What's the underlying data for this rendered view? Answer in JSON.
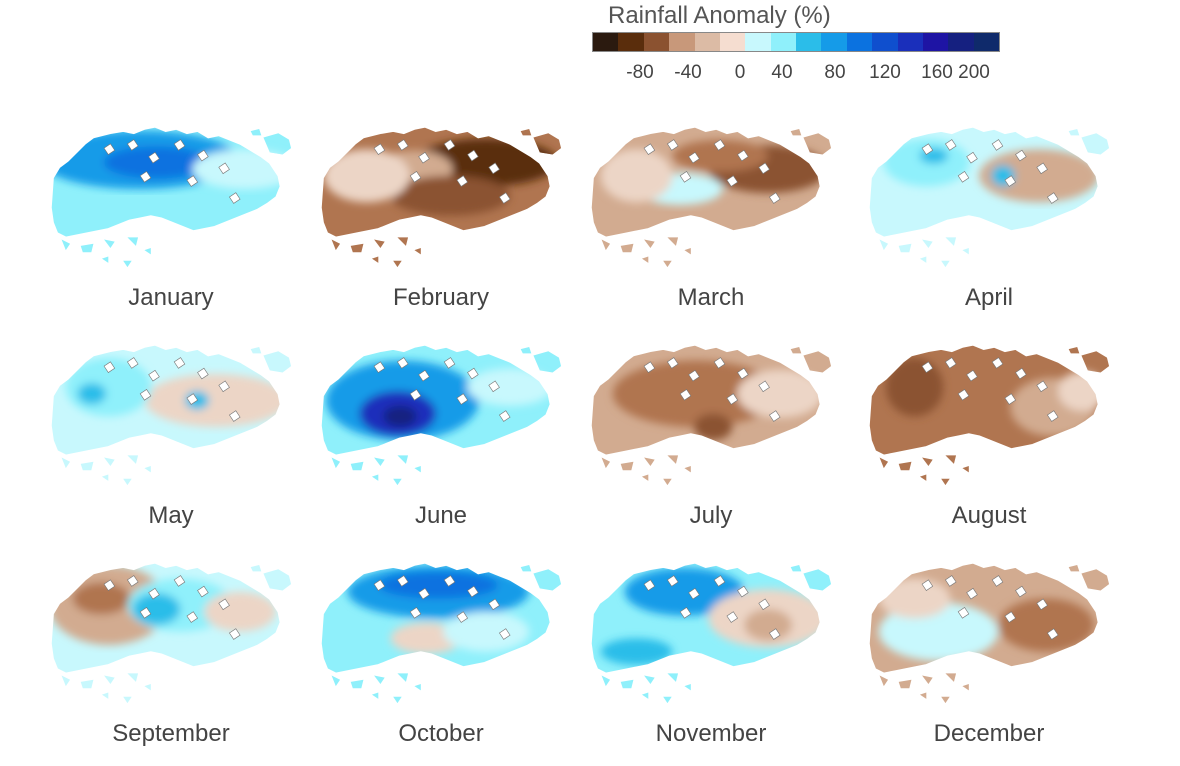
{
  "legend": {
    "title": "Rainfall Anomaly (%)",
    "colors": [
      "#2b1a0f",
      "#5a2d0c",
      "#8b5230",
      "#c8987a",
      "#dcbba5",
      "#f5ddd0",
      "#c8f8fd",
      "#8ff0fb",
      "#2bbde9",
      "#159be8",
      "#0b72e0",
      "#0f4fce",
      "#1a2fbb",
      "#1e14a4",
      "#152080",
      "#0f2a6b"
    ],
    "tick_labels": [
      "-80",
      "-40",
      "0",
      "40",
      "80",
      "120",
      "160",
      "200"
    ]
  },
  "palette": {
    "dd": "#5a2d0c",
    "db": "#8b5230",
    "mb": "#b07550",
    "lb": "#d2ab90",
    "vlb": "#ecd5c6",
    "pc": "#c8f8fd",
    "lc": "#8ff0fb",
    "mc": "#2bbde9",
    "bl": "#159be8",
    "db2": "#0b72e0",
    "nv": "#1a2fbb",
    "dn": "#152080"
  },
  "months": [
    {
      "name": "January",
      "base": "lc",
      "blobs": [
        [
          "bl",
          0.38,
          0.28,
          0.42,
          0.22
        ],
        [
          "db2",
          0.45,
          0.3,
          0.22,
          0.12
        ],
        [
          "pc",
          0.82,
          0.35,
          0.22,
          0.15
        ]
      ]
    },
    {
      "name": "February",
      "base": "mb",
      "blobs": [
        [
          "dd",
          0.7,
          0.3,
          0.3,
          0.18
        ],
        [
          "lb",
          0.4,
          0.35,
          0.16,
          0.14
        ],
        [
          "db",
          0.55,
          0.55,
          0.25,
          0.15
        ],
        [
          "vlb",
          0.2,
          0.4,
          0.18,
          0.2
        ]
      ]
    },
    {
      "name": "March",
      "base": "lb",
      "blobs": [
        [
          "db",
          0.75,
          0.35,
          0.25,
          0.18
        ],
        [
          "mb",
          0.55,
          0.25,
          0.2,
          0.12
        ],
        [
          "pc",
          0.38,
          0.5,
          0.18,
          0.12
        ],
        [
          "vlb",
          0.2,
          0.4,
          0.15,
          0.2
        ]
      ]
    },
    {
      "name": "April",
      "base": "pc",
      "blobs": [
        [
          "lb",
          0.72,
          0.4,
          0.25,
          0.2
        ],
        [
          "lc",
          0.25,
          0.3,
          0.18,
          0.18
        ],
        [
          "mc",
          0.28,
          0.25,
          0.06,
          0.06
        ],
        [
          "mc",
          0.57,
          0.4,
          0.05,
          0.08
        ]
      ]
    },
    {
      "name": "May",
      "base": "pc",
      "blobs": [
        [
          "vlb",
          0.7,
          0.45,
          0.3,
          0.2
        ],
        [
          "lc",
          0.25,
          0.35,
          0.18,
          0.22
        ],
        [
          "mc",
          0.18,
          0.4,
          0.06,
          0.08
        ],
        [
          "mc",
          0.62,
          0.45,
          0.05,
          0.07
        ]
      ]
    },
    {
      "name": "June",
      "base": "lc",
      "blobs": [
        [
          "bl",
          0.35,
          0.45,
          0.32,
          0.3
        ],
        [
          "nv",
          0.33,
          0.55,
          0.16,
          0.17
        ],
        [
          "dn",
          0.34,
          0.57,
          0.07,
          0.08
        ],
        [
          "pc",
          0.8,
          0.35,
          0.18,
          0.14
        ]
      ]
    },
    {
      "name": "July",
      "base": "lb",
      "blobs": [
        [
          "mb",
          0.45,
          0.4,
          0.35,
          0.25
        ],
        [
          "db",
          0.52,
          0.65,
          0.08,
          0.1
        ],
        [
          "vlb",
          0.8,
          0.4,
          0.18,
          0.18
        ]
      ]
    },
    {
      "name": "August",
      "base": "mb",
      "blobs": [
        [
          "db",
          0.2,
          0.35,
          0.12,
          0.22
        ],
        [
          "lb",
          0.78,
          0.5,
          0.18,
          0.22
        ],
        [
          "vlb",
          0.9,
          0.38,
          0.1,
          0.15
        ]
      ]
    },
    {
      "name": "September",
      "base": "pc",
      "blobs": [
        [
          "lb",
          0.25,
          0.35,
          0.25,
          0.3
        ],
        [
          "mb",
          0.22,
          0.3,
          0.12,
          0.12
        ],
        [
          "lc",
          0.55,
          0.35,
          0.22,
          0.2
        ],
        [
          "mc",
          0.45,
          0.38,
          0.1,
          0.12
        ],
        [
          "vlb",
          0.8,
          0.4,
          0.15,
          0.15
        ]
      ]
    },
    {
      "name": "October",
      "base": "lc",
      "blobs": [
        [
          "bl",
          0.5,
          0.25,
          0.38,
          0.2
        ],
        [
          "db2",
          0.5,
          0.2,
          0.25,
          0.1
        ],
        [
          "vlb",
          0.45,
          0.6,
          0.15,
          0.12
        ],
        [
          "pc",
          0.7,
          0.55,
          0.18,
          0.15
        ]
      ]
    },
    {
      "name": "November",
      "base": "lc",
      "blobs": [
        [
          "bl",
          0.4,
          0.25,
          0.25,
          0.18
        ],
        [
          "vlb",
          0.75,
          0.45,
          0.25,
          0.22
        ],
        [
          "lb",
          0.75,
          0.5,
          0.1,
          0.12
        ],
        [
          "mc",
          0.2,
          0.7,
          0.15,
          0.1
        ]
      ]
    },
    {
      "name": "December",
      "base": "lb",
      "blobs": [
        [
          "pc",
          0.3,
          0.55,
          0.25,
          0.22
        ],
        [
          "mb",
          0.75,
          0.5,
          0.2,
          0.2
        ],
        [
          "vlb",
          0.2,
          0.3,
          0.15,
          0.15
        ]
      ]
    }
  ]
}
